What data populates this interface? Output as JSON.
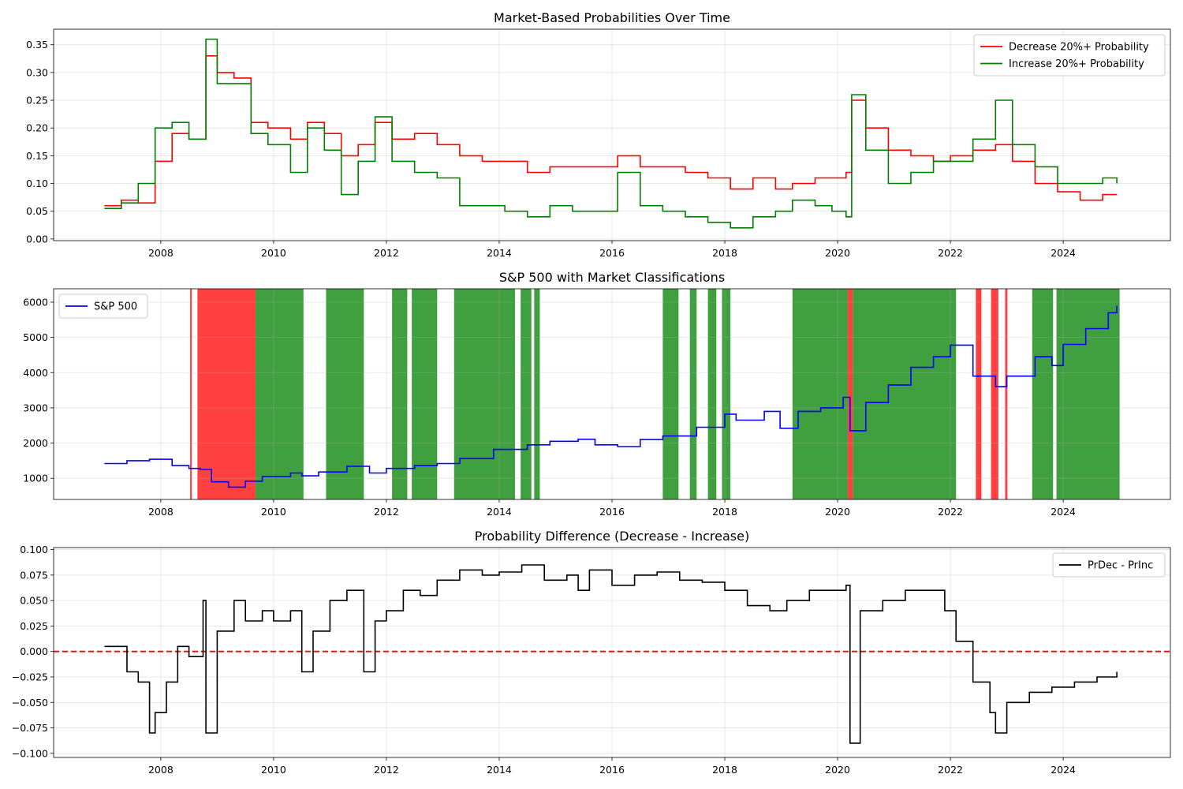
{
  "chart_data": [
    {
      "type": "line",
      "title": "Market-Based Probabilities Over Time",
      "xlabel": "",
      "ylabel": "",
      "xlim": [
        2006.1,
        2025.9
      ],
      "ylim": [
        -0.003,
        0.378
      ],
      "x_ticks": [
        "2008",
        "2010",
        "2012",
        "2014",
        "2016",
        "2018",
        "2020",
        "2022",
        "2024"
      ],
      "y_ticks": [
        "0.00",
        "0.05",
        "0.10",
        "0.15",
        "0.20",
        "0.25",
        "0.30",
        "0.35"
      ],
      "grid": true,
      "legend": "top-right",
      "series": [
        {
          "name": "Decrease 20%+ Probability",
          "color": "#ff0000",
          "x": [
            2007.0,
            2007.3,
            2007.6,
            2007.9,
            2008.2,
            2008.5,
            2008.8,
            2009.0,
            2009.3,
            2009.6,
            2009.9,
            2010.3,
            2010.6,
            2010.9,
            2011.2,
            2011.5,
            2011.8,
            2012.1,
            2012.5,
            2012.9,
            2013.3,
            2013.7,
            2014.1,
            2014.5,
            2014.9,
            2015.3,
            2015.7,
            2016.1,
            2016.5,
            2016.9,
            2017.3,
            2017.7,
            2018.1,
            2018.5,
            2018.9,
            2019.2,
            2019.6,
            2019.9,
            2020.15,
            2020.25,
            2020.5,
            2020.9,
            2021.3,
            2021.7,
            2022.0,
            2022.4,
            2022.8,
            2023.1,
            2023.5,
            2023.9,
            2024.3,
            2024.7,
            2024.95
          ],
          "values": [
            0.06,
            0.07,
            0.065,
            0.14,
            0.19,
            0.18,
            0.33,
            0.3,
            0.29,
            0.21,
            0.2,
            0.18,
            0.21,
            0.19,
            0.15,
            0.17,
            0.21,
            0.18,
            0.19,
            0.17,
            0.15,
            0.14,
            0.14,
            0.12,
            0.13,
            0.13,
            0.13,
            0.15,
            0.13,
            0.13,
            0.12,
            0.11,
            0.09,
            0.11,
            0.09,
            0.1,
            0.11,
            0.11,
            0.12,
            0.25,
            0.2,
            0.16,
            0.15,
            0.14,
            0.15,
            0.16,
            0.17,
            0.14,
            0.1,
            0.085,
            0.07,
            0.08,
            0.08
          ]
        },
        {
          "name": "Increase 20%+ Probability",
          "color": "#008000",
          "x": [
            2007.0,
            2007.3,
            2007.6,
            2007.9,
            2008.2,
            2008.5,
            2008.8,
            2009.0,
            2009.3,
            2009.6,
            2009.9,
            2010.3,
            2010.6,
            2010.9,
            2011.2,
            2011.5,
            2011.8,
            2012.1,
            2012.5,
            2012.9,
            2013.3,
            2013.7,
            2014.1,
            2014.5,
            2014.9,
            2015.3,
            2015.7,
            2016.1,
            2016.5,
            2016.9,
            2017.3,
            2017.7,
            2018.1,
            2018.5,
            2018.9,
            2019.2,
            2019.6,
            2019.9,
            2020.15,
            2020.25,
            2020.5,
            2020.9,
            2021.3,
            2021.7,
            2022.0,
            2022.4,
            2022.8,
            2023.1,
            2023.5,
            2023.9,
            2024.3,
            2024.7,
            2024.95
          ],
          "values": [
            0.055,
            0.065,
            0.1,
            0.2,
            0.21,
            0.18,
            0.36,
            0.28,
            0.28,
            0.19,
            0.17,
            0.12,
            0.2,
            0.16,
            0.08,
            0.14,
            0.22,
            0.14,
            0.12,
            0.11,
            0.06,
            0.06,
            0.05,
            0.04,
            0.06,
            0.05,
            0.05,
            0.12,
            0.06,
            0.05,
            0.04,
            0.03,
            0.02,
            0.04,
            0.05,
            0.07,
            0.06,
            0.05,
            0.04,
            0.26,
            0.16,
            0.1,
            0.12,
            0.14,
            0.14,
            0.18,
            0.25,
            0.17,
            0.13,
            0.1,
            0.1,
            0.11,
            0.1
          ]
        }
      ]
    },
    {
      "type": "line",
      "title": "S&P 500 with Market Classifications",
      "xlabel": "",
      "ylabel": "",
      "xlim": [
        2006.1,
        2025.9
      ],
      "ylim": [
        400,
        6380
      ],
      "x_ticks": [
        "2008",
        "2010",
        "2012",
        "2014",
        "2016",
        "2018",
        "2020",
        "2022",
        "2024"
      ],
      "y_ticks": [
        "1000",
        "2000",
        "3000",
        "4000",
        "5000",
        "6000"
      ],
      "grid": true,
      "legend": "top-left",
      "series": [
        {
          "name": "S&P 500",
          "color": "#0000ff",
          "x": [
            2007.0,
            2007.4,
            2007.8,
            2008.2,
            2008.5,
            2008.7,
            2008.9,
            2009.2,
            2009.5,
            2009.8,
            2010.3,
            2010.5,
            2010.8,
            2011.3,
            2011.7,
            2012.0,
            2012.5,
            2012.9,
            2013.3,
            2013.9,
            2014.5,
            2014.9,
            2015.4,
            2015.7,
            2016.1,
            2016.5,
            2016.9,
            2017.5,
            2018.0,
            2018.2,
            2018.7,
            2018.98,
            2019.3,
            2019.7,
            2020.1,
            2020.22,
            2020.5,
            2020.9,
            2021.3,
            2021.7,
            2022.0,
            2022.4,
            2022.8,
            2023.0,
            2023.5,
            2023.8,
            2024.0,
            2024.4,
            2024.8,
            2024.95
          ],
          "values": [
            1420,
            1500,
            1540,
            1360,
            1280,
            1250,
            900,
            750,
            920,
            1050,
            1150,
            1070,
            1180,
            1340,
            1150,
            1280,
            1360,
            1420,
            1560,
            1820,
            1950,
            2050,
            2110,
            1950,
            1900,
            2100,
            2200,
            2450,
            2820,
            2650,
            2900,
            2420,
            2900,
            3000,
            3300,
            2350,
            3150,
            3650,
            4150,
            4450,
            4780,
            3900,
            3600,
            3900,
            4450,
            4200,
            4800,
            5250,
            5700,
            5900
          ]
        }
      ],
      "classification_bands": [
        {
          "label": "decrease",
          "color": "#ff0000",
          "start": 2008.52,
          "end": 2008.55
        },
        {
          "label": "decrease",
          "color": "#ff0000",
          "start": 2008.65,
          "end": 2009.68
        },
        {
          "label": "increase",
          "color": "#008000",
          "start": 2009.68,
          "end": 2010.53
        },
        {
          "label": "increase",
          "color": "#008000",
          "start": 2010.93,
          "end": 2011.6
        },
        {
          "label": "increase",
          "color": "#008000",
          "start": 2012.1,
          "end": 2012.37
        },
        {
          "label": "increase",
          "color": "#008000",
          "start": 2012.45,
          "end": 2012.9
        },
        {
          "label": "increase",
          "color": "#008000",
          "start": 2013.2,
          "end": 2014.28
        },
        {
          "label": "increase",
          "color": "#008000",
          "start": 2014.38,
          "end": 2014.57
        },
        {
          "label": "increase",
          "color": "#008000",
          "start": 2014.62,
          "end": 2014.72
        },
        {
          "label": "increase",
          "color": "#008000",
          "start": 2016.9,
          "end": 2017.18
        },
        {
          "label": "increase",
          "color": "#008000",
          "start": 2017.38,
          "end": 2017.5
        },
        {
          "label": "increase",
          "color": "#008000",
          "start": 2017.7,
          "end": 2017.85
        },
        {
          "label": "increase",
          "color": "#008000",
          "start": 2017.95,
          "end": 2018.1
        },
        {
          "label": "increase",
          "color": "#008000",
          "start": 2019.2,
          "end": 2020.18
        },
        {
          "label": "decrease",
          "color": "#ff0000",
          "start": 2020.18,
          "end": 2020.27
        },
        {
          "label": "increase",
          "color": "#008000",
          "start": 2020.27,
          "end": 2022.1
        },
        {
          "label": "decrease",
          "color": "#ff0000",
          "start": 2022.45,
          "end": 2022.55
        },
        {
          "label": "decrease",
          "color": "#ff0000",
          "start": 2022.72,
          "end": 2022.85
        },
        {
          "label": "decrease",
          "color": "#ff0000",
          "start": 2022.97,
          "end": 2023.01
        },
        {
          "label": "increase",
          "color": "#008000",
          "start": 2023.45,
          "end": 2023.82
        },
        {
          "label": "increase",
          "color": "#008000",
          "start": 2023.88,
          "end": 2025.0
        }
      ]
    },
    {
      "type": "line",
      "title": "Probability Difference (Decrease - Increase)",
      "xlabel": "",
      "ylabel": "",
      "xlim": [
        2006.1,
        2025.9
      ],
      "ylim": [
        -0.104,
        0.102
      ],
      "x_ticks": [
        "2008",
        "2010",
        "2012",
        "2014",
        "2016",
        "2018",
        "2020",
        "2022",
        "2024"
      ],
      "y_ticks": [
        "−0.100",
        "−0.075",
        "−0.050",
        "−0.025",
        "0.000",
        "0.025",
        "0.050",
        "0.075",
        "0.100"
      ],
      "grid": true,
      "legend": "top-right",
      "reference_line": {
        "y": 0,
        "color": "#ff0000",
        "style": "dashed"
      },
      "series": [
        {
          "name": "PrDec - PrInc",
          "color": "#000000",
          "x": [
            2007.0,
            2007.2,
            2007.4,
            2007.6,
            2007.8,
            2007.9,
            2008.1,
            2008.3,
            2008.5,
            2008.75,
            2008.8,
            2009.0,
            2009.3,
            2009.5,
            2009.8,
            2010.0,
            2010.3,
            2010.5,
            2010.7,
            2011.0,
            2011.3,
            2011.6,
            2011.8,
            2012.0,
            2012.3,
            2012.6,
            2012.9,
            2013.3,
            2013.7,
            2014.0,
            2014.4,
            2014.8,
            2015.2,
            2015.4,
            2015.6,
            2016.0,
            2016.4,
            2016.8,
            2017.2,
            2017.6,
            2018.0,
            2018.4,
            2018.8,
            2019.1,
            2019.5,
            2019.8,
            2020.15,
            2020.22,
            2020.4,
            2020.8,
            2021.2,
            2021.6,
            2021.9,
            2022.1,
            2022.4,
            2022.7,
            2022.8,
            2023.0,
            2023.4,
            2023.8,
            2024.2,
            2024.6,
            2024.95
          ],
          "values": [
            0.005,
            0.005,
            -0.02,
            -0.03,
            -0.08,
            -0.06,
            -0.03,
            0.005,
            -0.005,
            0.05,
            -0.08,
            0.02,
            0.05,
            0.03,
            0.04,
            0.03,
            0.04,
            -0.02,
            0.02,
            0.05,
            0.06,
            -0.02,
            0.03,
            0.04,
            0.06,
            0.055,
            0.07,
            0.08,
            0.075,
            0.078,
            0.085,
            0.07,
            0.075,
            0.06,
            0.08,
            0.065,
            0.075,
            0.078,
            0.07,
            0.068,
            0.06,
            0.045,
            0.04,
            0.05,
            0.06,
            0.06,
            0.065,
            -0.09,
            0.04,
            0.05,
            0.06,
            0.06,
            0.04,
            0.01,
            -0.03,
            -0.06,
            -0.08,
            -0.05,
            -0.04,
            -0.035,
            -0.03,
            -0.025,
            -0.02
          ]
        }
      ]
    }
  ]
}
